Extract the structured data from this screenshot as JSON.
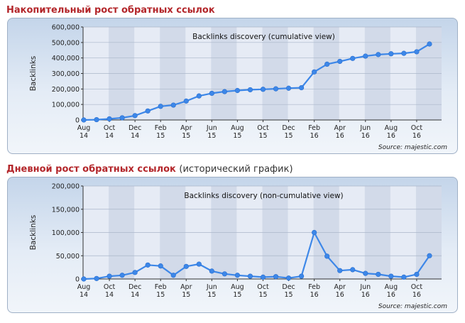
{
  "sections": [
    {
      "heading": "Накопительный рост обратных ссылок",
      "subheading": ""
    },
    {
      "heading": "Дневной рост обратных ссылок",
      "subheading": "(исторический график)"
    }
  ],
  "colors": {
    "heading": "#b3262a",
    "line": "#3d87e8",
    "marker": "#3d87e8",
    "band_light": "#e6ebf5",
    "band_dark": "#d2dae9"
  },
  "chart_data": [
    {
      "type": "line",
      "title": "Backlinks discovery (cumulative view)",
      "xlabel": "",
      "ylabel": "Backlinks",
      "source": "Source: majestic.com",
      "ylim": [
        0,
        600000
      ],
      "yticks": [
        0,
        100000,
        200000,
        300000,
        400000,
        500000,
        600000
      ],
      "ytick_labels": [
        "0",
        "100,000",
        "200,000",
        "300,000",
        "400,000",
        "500,000",
        "600,000"
      ],
      "xtick_labels": [
        [
          "Aug",
          "14"
        ],
        [
          "Oct",
          "14"
        ],
        [
          "Dec",
          "14"
        ],
        [
          "Feb",
          "15"
        ],
        [
          "Apr",
          "15"
        ],
        [
          "Jun",
          "15"
        ],
        [
          "Aug",
          "15"
        ],
        [
          "Oct",
          "15"
        ],
        [
          "Dec",
          "15"
        ],
        [
          "Feb",
          "16"
        ],
        [
          "Apr",
          "16"
        ],
        [
          "Jun",
          "16"
        ],
        [
          "Aug",
          "16"
        ],
        [
          "Oct",
          "16"
        ]
      ],
      "grid": true,
      "series": [
        {
          "values": [
            0,
            2000,
            7000,
            14000,
            28000,
            58000,
            88000,
            96000,
            122000,
            155000,
            172000,
            183000,
            190000,
            195000,
            198000,
            201000,
            205000,
            208000,
            310000,
            360000,
            378000,
            397000,
            412000,
            422000,
            427000,
            430000,
            440000,
            490000
          ]
        }
      ]
    },
    {
      "type": "line",
      "title": "Backlinks discovery (non-cumulative view)",
      "xlabel": "",
      "ylabel": "Backlinks",
      "source": "Source: majestic.com",
      "ylim": [
        0,
        200000
      ],
      "yticks": [
        0,
        50000,
        100000,
        150000,
        200000
      ],
      "ytick_labels": [
        "0",
        "50,000",
        "100,000",
        "150,000",
        "200,000"
      ],
      "xtick_labels": [
        [
          "Aug",
          "14"
        ],
        [
          "Oct",
          "14"
        ],
        [
          "Dec",
          "14"
        ],
        [
          "Feb",
          "15"
        ],
        [
          "Apr",
          "15"
        ],
        [
          "Jun",
          "15"
        ],
        [
          "Aug",
          "15"
        ],
        [
          "Oct",
          "15"
        ],
        [
          "Dec",
          "15"
        ],
        [
          "Feb",
          "16"
        ],
        [
          "Apr",
          "16"
        ],
        [
          "Jun",
          "16"
        ],
        [
          "Aug",
          "16"
        ],
        [
          "Oct",
          "16"
        ]
      ],
      "grid": true,
      "series": [
        {
          "values": [
            0,
            1000,
            6000,
            8000,
            14000,
            30000,
            28000,
            8000,
            27000,
            32000,
            17000,
            11000,
            8000,
            6000,
            4000,
            5000,
            2000,
            6000,
            100000,
            49000,
            18000,
            20000,
            12000,
            10000,
            6000,
            4000,
            10000,
            50000
          ]
        }
      ]
    }
  ]
}
